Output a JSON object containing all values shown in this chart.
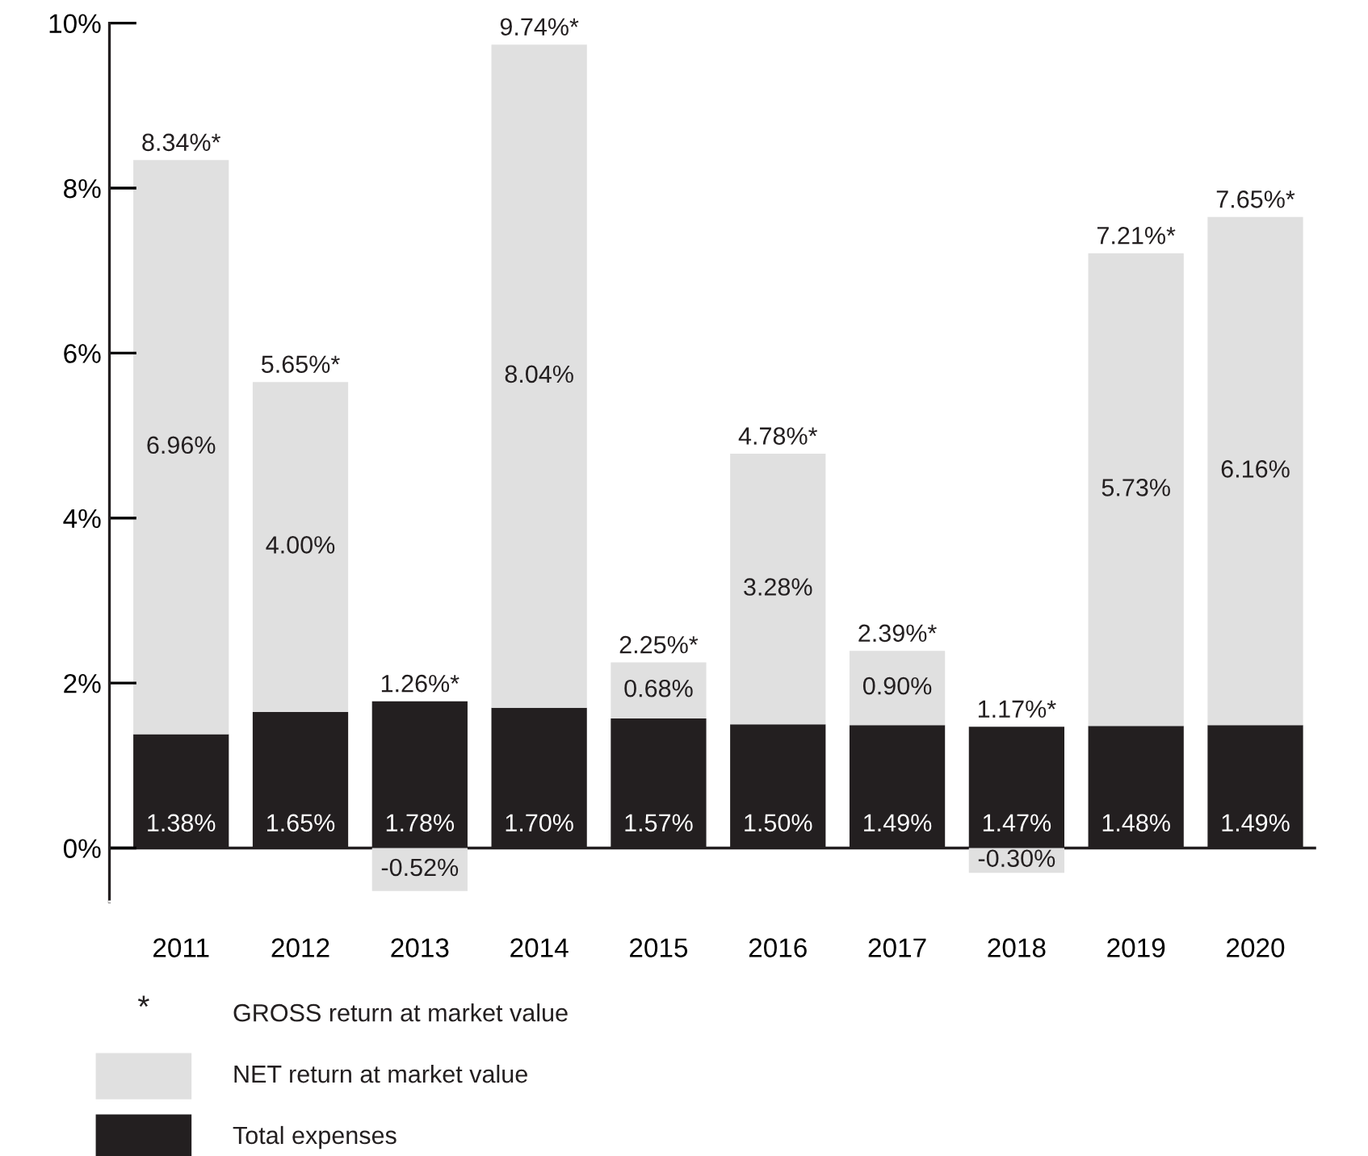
{
  "chart_data": {
    "type": "bar",
    "stacked": true,
    "categories": [
      "2011",
      "2012",
      "2013",
      "2014",
      "2015",
      "2016",
      "2017",
      "2018",
      "2019",
      "2020"
    ],
    "series": [
      {
        "name": "Total expenses",
        "color": "#231f20",
        "values": [
          1.38,
          1.65,
          1.78,
          1.7,
          1.57,
          1.5,
          1.49,
          1.47,
          1.48,
          1.49
        ],
        "value_labels": [
          "1.38%",
          "1.65%",
          "1.78%",
          "1.70%",
          "1.57%",
          "1.50%",
          "1.49%",
          "1.47%",
          "1.48%",
          "1.49%"
        ]
      },
      {
        "name": "NET return at market value",
        "color": "#e0e0e0",
        "values": [
          6.96,
          4.0,
          -0.52,
          8.04,
          0.68,
          3.28,
          0.9,
          -0.3,
          5.73,
          6.16
        ],
        "value_labels": [
          "6.96%",
          "4.00%",
          "-0.52%",
          "8.04%",
          "0.68%",
          "3.28%",
          "0.90%",
          "-0.30%",
          "5.73%",
          "6.16%"
        ]
      }
    ],
    "totals": [
      "8.34%*",
      "5.65%*",
      "1.26%*",
      "9.74%*",
      "2.25%*",
      "4.78%*",
      "2.39%*",
      "1.17%*",
      "7.21%*",
      "7.65%*"
    ],
    "annotations": [
      "*",
      "GROSS return at market value"
    ],
    "ylim": [
      -0.65,
      10
    ],
    "yticks": [
      {
        "value": 0,
        "label": "0%"
      },
      {
        "value": 2,
        "label": "2%"
      },
      {
        "value": 4,
        "label": "4%"
      },
      {
        "value": 6,
        "label": "6%"
      },
      {
        "value": 8,
        "label": "8%"
      },
      {
        "value": 10,
        "label": "10%"
      }
    ],
    "ref_lines": [
      {
        "axis": "y",
        "value": 0,
        "color": "#231f20"
      }
    ],
    "grid": false,
    "legend": "bottom"
  }
}
